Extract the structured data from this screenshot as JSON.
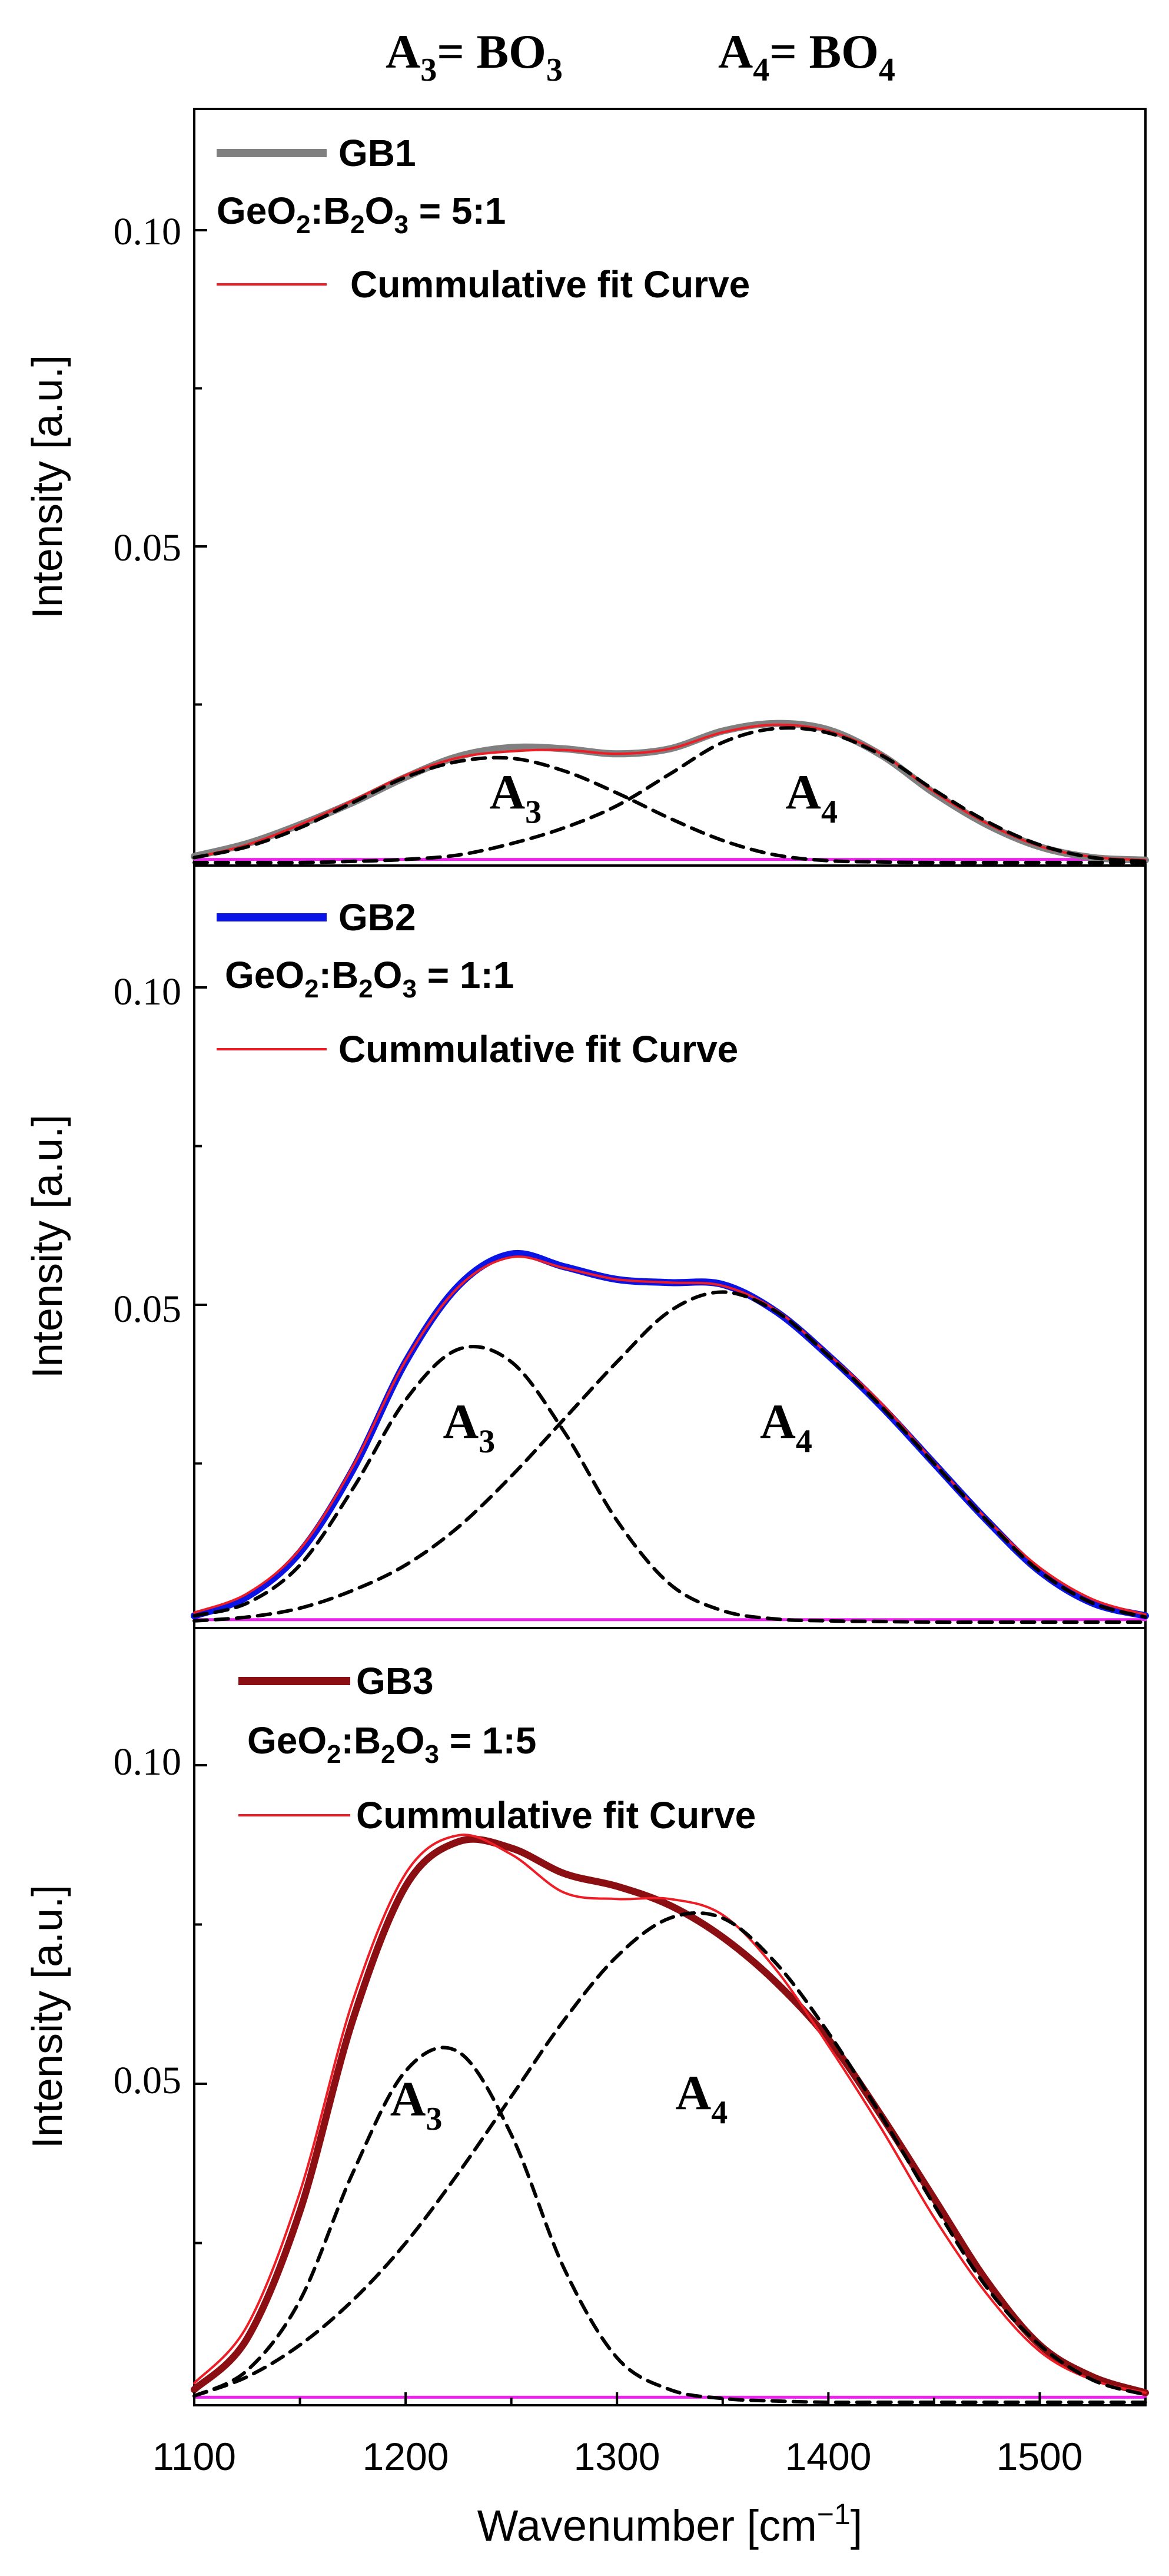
{
  "header": {
    "left": {
      "main": "A",
      "sub1": "3",
      "mid": "= BO",
      "sub2": "3"
    },
    "right": {
      "main": "A",
      "sub1": "4",
      "mid": "= BO",
      "sub2": "4"
    }
  },
  "colors": {
    "gb1": "#808080",
    "gb2": "#0a14e6",
    "gb3": "#8b0f12",
    "fit": "#ee1c24",
    "baseline": "#ee22ee",
    "component": "#000000"
  },
  "x_axis": {
    "label": "Wavenumber [cm",
    "label_sup": "−1",
    "label_end": "]",
    "range": [
      1100,
      1550
    ],
    "ticks": [
      "1100",
      "1200",
      "1300",
      "1400",
      "1500"
    ]
  },
  "chart_data": [
    {
      "type": "line",
      "id": "gb1",
      "ylabel": "Intensity [a.u.]",
      "ylim": [
        0.0,
        0.12
      ],
      "yticks": [
        "0.05",
        "0.10"
      ],
      "legend": {
        "sample": "GB1",
        "ratio": {
          "a": "GeO",
          "b": "2",
          "c": ":B",
          "d": "2",
          "e": "O",
          "f": "3",
          "g": " = 5:1"
        },
        "fit": "Cummulative fit Curve"
      },
      "annotations": [
        {
          "main": "A",
          "sub": "3",
          "x": 1252,
          "y": 0.0085
        },
        {
          "main": "A",
          "sub": "4",
          "x": 1392,
          "y": 0.0085
        }
      ],
      "series": [
        {
          "name": "GB1",
          "role": "data",
          "x": [
            1100,
            1125,
            1150,
            1175,
            1200,
            1225,
            1250,
            1275,
            1300,
            1325,
            1350,
            1375,
            1400,
            1425,
            1450,
            1475,
            1500,
            1525,
            1550
          ],
          "y": [
            0.001,
            0.003,
            0.006,
            0.0095,
            0.0135,
            0.0168,
            0.0182,
            0.018,
            0.0172,
            0.018,
            0.0208,
            0.022,
            0.021,
            0.017,
            0.011,
            0.006,
            0.0025,
            0.0008,
            0.0004
          ]
        },
        {
          "name": "Cummulative fit Curve",
          "role": "fit",
          "x": [
            1100,
            1125,
            1150,
            1175,
            1200,
            1225,
            1250,
            1275,
            1300,
            1325,
            1350,
            1375,
            1400,
            1425,
            1450,
            1475,
            1500,
            1525,
            1550
          ],
          "y": [
            0.0008,
            0.0028,
            0.006,
            0.0098,
            0.0138,
            0.0166,
            0.0176,
            0.0178,
            0.0172,
            0.018,
            0.0206,
            0.0218,
            0.0208,
            0.0172,
            0.0112,
            0.0062,
            0.0026,
            0.0009,
            0.0004
          ]
        },
        {
          "name": "A3",
          "role": "component",
          "x": [
            1100,
            1125,
            1150,
            1175,
            1200,
            1225,
            1250,
            1275,
            1300,
            1325,
            1350,
            1375,
            1400,
            1425,
            1450,
            1475,
            1500,
            1525,
            1550
          ],
          "y": [
            0.0008,
            0.0025,
            0.0055,
            0.0095,
            0.0135,
            0.016,
            0.0165,
            0.0145,
            0.011,
            0.007,
            0.0035,
            0.0012,
            0.0003,
            0.0001,
            0.0,
            0.0,
            0.0,
            0.0,
            0.0
          ]
        },
        {
          "name": "A4",
          "role": "component",
          "x": [
            1100,
            1125,
            1150,
            1175,
            1200,
            1225,
            1250,
            1275,
            1300,
            1325,
            1350,
            1375,
            1400,
            1425,
            1450,
            1475,
            1500,
            1525,
            1550
          ],
          "y": [
            0.0,
            0.0,
            0.0,
            0.0002,
            0.0005,
            0.0012,
            0.003,
            0.0055,
            0.009,
            0.014,
            0.019,
            0.0212,
            0.0205,
            0.017,
            0.0115,
            0.0065,
            0.0028,
            0.0008,
            0.0002
          ]
        },
        {
          "name": "baseline",
          "role": "baseline",
          "x": [
            1100,
            1550
          ],
          "y": [
            0.0005,
            0.0005
          ]
        }
      ]
    },
    {
      "type": "line",
      "id": "gb2",
      "ylabel": "Intensity [a.u.]",
      "ylim": [
        0.0,
        0.12
      ],
      "yticks": [
        "0.05",
        "0.10"
      ],
      "legend": {
        "sample": "GB2",
        "ratio": {
          "a": "GeO",
          "b": "2",
          "c": ":B",
          "d": "2",
          "e": "O",
          "f": "3",
          "g": " = 1:1"
        },
        "fit": "Cummulative fit Curve"
      },
      "annotations": [
        {
          "main": "A",
          "sub": "3",
          "x": 1230,
          "y": 0.029
        },
        {
          "main": "A",
          "sub": "4",
          "x": 1380,
          "y": 0.029
        }
      ],
      "series": [
        {
          "name": "GB2",
          "role": "data",
          "x": [
            1100,
            1125,
            1150,
            1175,
            1200,
            1225,
            1250,
            1275,
            1300,
            1325,
            1350,
            1375,
            1400,
            1425,
            1450,
            1475,
            1500,
            1525,
            1550
          ],
          "y": [
            0.001,
            0.004,
            0.011,
            0.024,
            0.041,
            0.053,
            0.058,
            0.056,
            0.054,
            0.0535,
            0.0532,
            0.049,
            0.042,
            0.034,
            0.025,
            0.016,
            0.008,
            0.003,
            0.001
          ]
        },
        {
          "name": "Cummulative fit Curve",
          "role": "fit",
          "x": [
            1100,
            1125,
            1150,
            1175,
            1200,
            1225,
            1250,
            1275,
            1300,
            1325,
            1350,
            1375,
            1400,
            1425,
            1450,
            1475,
            1500,
            1525,
            1550
          ],
          "y": [
            0.0015,
            0.0045,
            0.0115,
            0.0245,
            0.0412,
            0.0528,
            0.0575,
            0.0558,
            0.054,
            0.0535,
            0.053,
            0.0492,
            0.0422,
            0.0345,
            0.0252,
            0.0162,
            0.0086,
            0.0036,
            0.0012
          ]
        },
        {
          "name": "A3",
          "role": "component",
          "x": [
            1100,
            1125,
            1150,
            1175,
            1200,
            1225,
            1250,
            1275,
            1300,
            1325,
            1350,
            1375,
            1400,
            1425,
            1450,
            1475,
            1500,
            1525,
            1550
          ],
          "y": [
            0.001,
            0.003,
            0.009,
            0.021,
            0.035,
            0.043,
            0.041,
            0.03,
            0.016,
            0.006,
            0.0018,
            0.0005,
            0.0002,
            0.0001,
            0.0,
            0.0,
            0.0,
            0.0,
            0.0
          ]
        },
        {
          "name": "A4",
          "role": "component",
          "x": [
            1100,
            1125,
            1150,
            1175,
            1200,
            1225,
            1250,
            1275,
            1300,
            1325,
            1350,
            1375,
            1400,
            1425,
            1450,
            1475,
            1500,
            1525,
            1550
          ],
          "y": [
            0.0002,
            0.0008,
            0.0022,
            0.005,
            0.009,
            0.015,
            0.023,
            0.032,
            0.041,
            0.049,
            0.052,
            0.049,
            0.042,
            0.034,
            0.025,
            0.016,
            0.008,
            0.003,
            0.0008
          ]
        },
        {
          "name": "baseline",
          "role": "baseline",
          "x": [
            1100,
            1550
          ],
          "y": [
            0.0004,
            0.0004
          ]
        }
      ]
    },
    {
      "type": "line",
      "id": "gb3",
      "ylabel": "Intensity [a.u.]",
      "ylim": [
        0.0,
        0.12
      ],
      "yticks": [
        "0.05",
        "0.10"
      ],
      "legend": {
        "sample": "GB3",
        "ratio": {
          "a": "GeO",
          "b": "2",
          "c": ":B",
          "d": "2",
          "e": "O",
          "f": "3",
          "g": " = 1:5"
        },
        "fit": "Cummulative fit Curve"
      },
      "annotations": [
        {
          "main": "A",
          "sub": "3",
          "x": 1205,
          "y": 0.045
        },
        {
          "main": "A",
          "sub": "4",
          "x": 1340,
          "y": 0.046
        }
      ],
      "series": [
        {
          "name": "GB3",
          "role": "data",
          "x": [
            1100,
            1125,
            1150,
            1175,
            1200,
            1225,
            1250,
            1275,
            1300,
            1325,
            1350,
            1375,
            1400,
            1425,
            1450,
            1475,
            1500,
            1525,
            1550
          ],
          "y": [
            0.002,
            0.01,
            0.03,
            0.06,
            0.081,
            0.088,
            0.087,
            0.083,
            0.081,
            0.078,
            0.073,
            0.066,
            0.057,
            0.045,
            0.032,
            0.019,
            0.009,
            0.004,
            0.0015
          ]
        },
        {
          "name": "Cummulative fit Curve",
          "role": "fit",
          "x": [
            1100,
            1125,
            1150,
            1175,
            1200,
            1225,
            1250,
            1275,
            1300,
            1325,
            1350,
            1375,
            1400,
            1425,
            1450,
            1475,
            1500,
            1525,
            1550
          ],
          "y": [
            0.003,
            0.012,
            0.033,
            0.063,
            0.083,
            0.089,
            0.086,
            0.08,
            0.079,
            0.079,
            0.0765,
            0.068,
            0.056,
            0.043,
            0.029,
            0.017,
            0.008,
            0.0035,
            0.0015
          ]
        },
        {
          "name": "A3",
          "role": "component",
          "x": [
            1100,
            1125,
            1150,
            1175,
            1200,
            1225,
            1250,
            1275,
            1300,
            1325,
            1350,
            1375,
            1400,
            1425,
            1450,
            1475,
            1500,
            1525,
            1550
          ],
          "y": [
            0.001,
            0.005,
            0.016,
            0.036,
            0.052,
            0.055,
            0.042,
            0.021,
            0.007,
            0.002,
            0.0006,
            0.0002,
            0.0,
            0.0,
            0.0,
            0.0,
            0.0,
            0.0,
            0.0
          ]
        },
        {
          "name": "A4",
          "role": "component",
          "x": [
            1100,
            1125,
            1150,
            1175,
            1200,
            1225,
            1250,
            1275,
            1300,
            1325,
            1350,
            1375,
            1400,
            1425,
            1450,
            1475,
            1500,
            1525,
            1550
          ],
          "y": [
            0.001,
            0.004,
            0.009,
            0.016,
            0.025,
            0.036,
            0.048,
            0.06,
            0.07,
            0.076,
            0.076,
            0.069,
            0.058,
            0.045,
            0.031,
            0.018,
            0.009,
            0.0035,
            0.0012
          ]
        },
        {
          "name": "baseline",
          "role": "baseline",
          "x": [
            1100,
            1550
          ],
          "y": [
            0.0008,
            0.0008
          ]
        }
      ]
    }
  ]
}
